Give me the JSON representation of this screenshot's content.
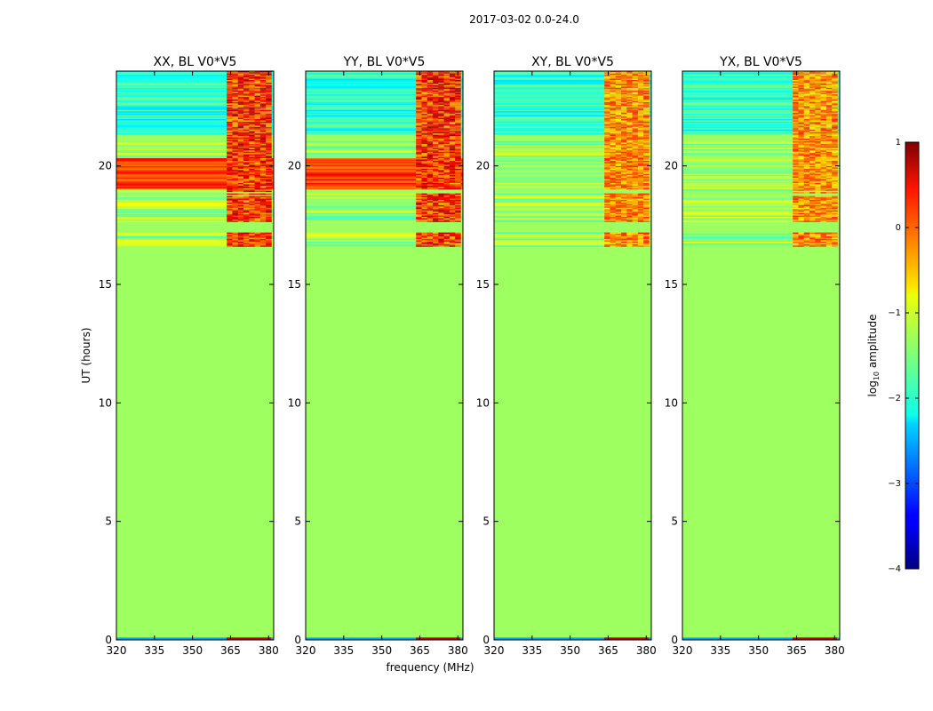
{
  "figure": {
    "title": "2017-03-02 0.0-24.0"
  },
  "chart_data": {
    "type": "heatmap",
    "xlabel": "frequency (MHz)",
    "ylabel": "UT (hours)",
    "x_range": [
      320,
      382
    ],
    "y_range": [
      0,
      24
    ],
    "x_ticks": [
      320,
      335,
      350,
      365,
      380
    ],
    "y_ticks": [
      0,
      5,
      10,
      15,
      20
    ],
    "panels": [
      {
        "title": "XX, BL V0*V5"
      },
      {
        "title": "YY, BL V0*V5"
      },
      {
        "title": "XY, BL V0*V5"
      },
      {
        "title": "YX, BL V0*V5"
      }
    ],
    "colorbar": {
      "label_main": "log",
      "label_sub": "10",
      "label_rest": " amplitude",
      "range": [
        -4,
        1
      ],
      "ticks": [
        {
          "v": 1,
          "label": "1"
        },
        {
          "v": 0,
          "label": "0"
        },
        {
          "v": -1,
          "label": "−1"
        },
        {
          "v": -2,
          "label": "−2"
        },
        {
          "v": -3,
          "label": "−3"
        },
        {
          "v": -4,
          "label": "−4"
        }
      ],
      "colormap": "jet"
    },
    "flat_region": {
      "y_from": 0.1,
      "y_to": 16.6,
      "value": -1.35
    }
  }
}
